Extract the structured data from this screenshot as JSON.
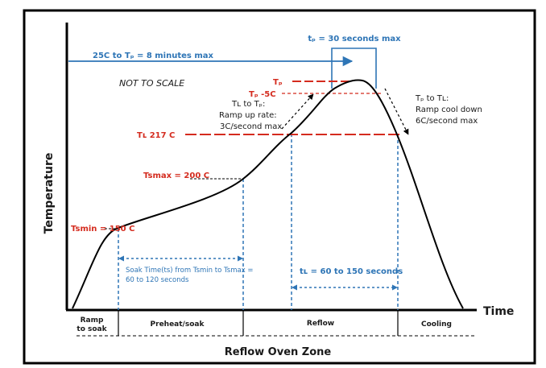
{
  "labels": {
    "tp_duration": "tₚ = 30 seconds max",
    "ramp_to_peak": "25C to Tₚ = 8 minutes max",
    "not_to_scale": "NOT TO SCALE",
    "tp": "Tₚ",
    "tp_minus_5": "Tₚ -5C",
    "ramp_up_line1": "Tʟ to Tₚ:",
    "ramp_up_line2": "Ramp up rate:",
    "ramp_up_line3": "3C/second max",
    "cool_line1": "Tₚ to Tʟ:",
    "cool_line2": "Ramp cool down",
    "cool_line3": "6C/second max",
    "tl": "Tʟ 217 C",
    "tsmax": "Tsmax = 200 C",
    "tsmin": "Tsmin = 150 C",
    "soak_line1": "Soak Time(ts) from Tsmin to Tsmax =",
    "soak_line2": "60 to 120 seconds",
    "tl_duration": "tʟ = 60 to 150 seconds",
    "y_axis": "Temperature",
    "x_axis": "Time"
  },
  "zones": {
    "title": "Reflow Oven Zone",
    "ramp_line1": "Ramp",
    "ramp_line2": "to soak",
    "preheat": "Preheat/soak",
    "reflow": "Reflow",
    "cooling": "Cooling"
  },
  "colors": {
    "blue": "#2e75b6",
    "red": "#d42b1e",
    "black": "#000000"
  }
}
